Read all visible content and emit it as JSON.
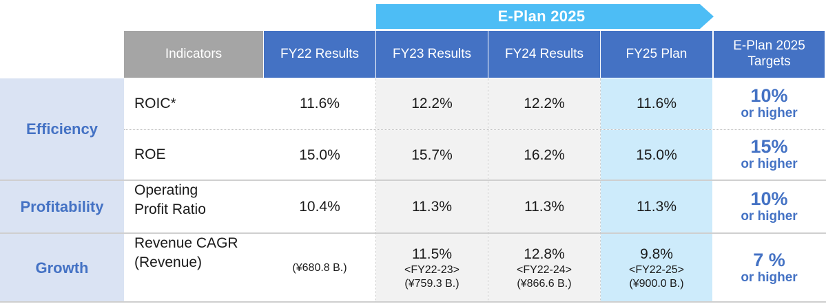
{
  "banner": {
    "label": "E-Plan 2025"
  },
  "headers": {
    "indicators": "Indicators",
    "fy22": "FY22 Results",
    "fy23": "FY23 Results",
    "fy24": "FY24 Results",
    "fy25": "FY25 Plan",
    "targets_line1": "E-Plan 2025",
    "targets_line2": "Targets"
  },
  "categories": {
    "efficiency": "Efficiency",
    "profitability": "Profitability",
    "growth": "Growth"
  },
  "rows": {
    "roic": {
      "label": "ROIC*",
      "fy22": "11.6%",
      "fy23": "12.2%",
      "fy24": "12.2%",
      "fy25": "11.6%",
      "target_value": "10%",
      "target_text": "or higher"
    },
    "roe": {
      "label": "ROE",
      "fy22": "15.0%",
      "fy23": "15.7%",
      "fy24": "16.2%",
      "fy25": "15.0%",
      "target_value": "15%",
      "target_text": "or higher"
    },
    "opr": {
      "label_line1": "Operating",
      "label_line2": "Profit Ratio",
      "fy22": "10.4%",
      "fy23": "11.3%",
      "fy24": "11.3%",
      "fy25": "11.3%",
      "target_value": "10%",
      "target_text": "or higher"
    },
    "cagr": {
      "label_line1": "Revenue CAGR",
      "label_line2": "(Revenue)",
      "fy22_revenue": "(¥680.8 B.)",
      "fy23_value": "11.5%",
      "fy23_period": "<FY22-23>",
      "fy23_revenue": "(¥759.3 B.)",
      "fy24_value": "12.8%",
      "fy24_period": "<FY22-24>",
      "fy24_revenue": "(¥866.6 B.)",
      "fy25_value": "9.8%",
      "fy25_period": "<FY22-25>",
      "fy25_revenue": "(¥900.0 B.)",
      "target_value": "7 %",
      "target_text": "or higher"
    }
  },
  "colors": {
    "header_blue": "#4472c4",
    "header_gray": "#a5a5a5",
    "category_bg": "#dae3f3",
    "plan_bg": "#cdebfb",
    "banner": "#4dbdf5",
    "accent_text": "#4472c4"
  }
}
